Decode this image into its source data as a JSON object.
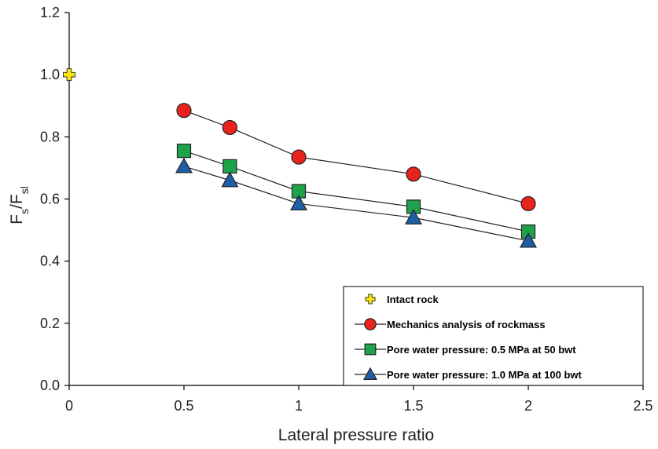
{
  "chart_data": {
    "type": "line",
    "xlabel": "Lateral pressure ratio",
    "ylabel_main": "F",
    "ylabel_sub1": "s",
    "ylabel_sep": "/F",
    "ylabel_sub2": "sl",
    "xlim": [
      0,
      2.5
    ],
    "ylim": [
      0,
      1.2
    ],
    "xticks": [
      0,
      0.5,
      1,
      1.5,
      2,
      2.5
    ],
    "xtick_labels": [
      "0",
      "0.5",
      "1",
      "1.5",
      "2",
      "2.5"
    ],
    "yticks": [
      0,
      0.2,
      0.4,
      0.6,
      0.8,
      1.0,
      1.2
    ],
    "ytick_labels": [
      "0.0",
      "0.2",
      "0.4",
      "0.6",
      "0.8",
      "1.0",
      "1.2"
    ],
    "grid": false,
    "legend_position": "bottom-right",
    "series": [
      {
        "name": "Intact rock",
        "marker": "plus",
        "color": "#FFE600",
        "line": false,
        "x": [
          0
        ],
        "y": [
          1.0
        ]
      },
      {
        "name": "Mechanics analysis of rockmass",
        "marker": "circle",
        "color": "#E8231E",
        "line": true,
        "x": [
          0.5,
          0.7,
          1.0,
          1.5,
          2.0
        ],
        "y": [
          0.885,
          0.83,
          0.735,
          0.68,
          0.585
        ]
      },
      {
        "name": "Pore water pressure: 0.5 MPa at 50 bwt",
        "marker": "square",
        "color": "#1FA34A",
        "line": true,
        "x": [
          0.5,
          0.7,
          1.0,
          1.5,
          2.0
        ],
        "y": [
          0.755,
          0.705,
          0.625,
          0.575,
          0.495
        ]
      },
      {
        "name": "Pore water pressure: 1.0 MPa at 100 bwt",
        "marker": "triangle",
        "color": "#1F5FA8",
        "line": true,
        "x": [
          0.5,
          0.7,
          1.0,
          1.5,
          2.0
        ],
        "y": [
          0.705,
          0.66,
          0.585,
          0.54,
          0.465
        ]
      }
    ]
  }
}
